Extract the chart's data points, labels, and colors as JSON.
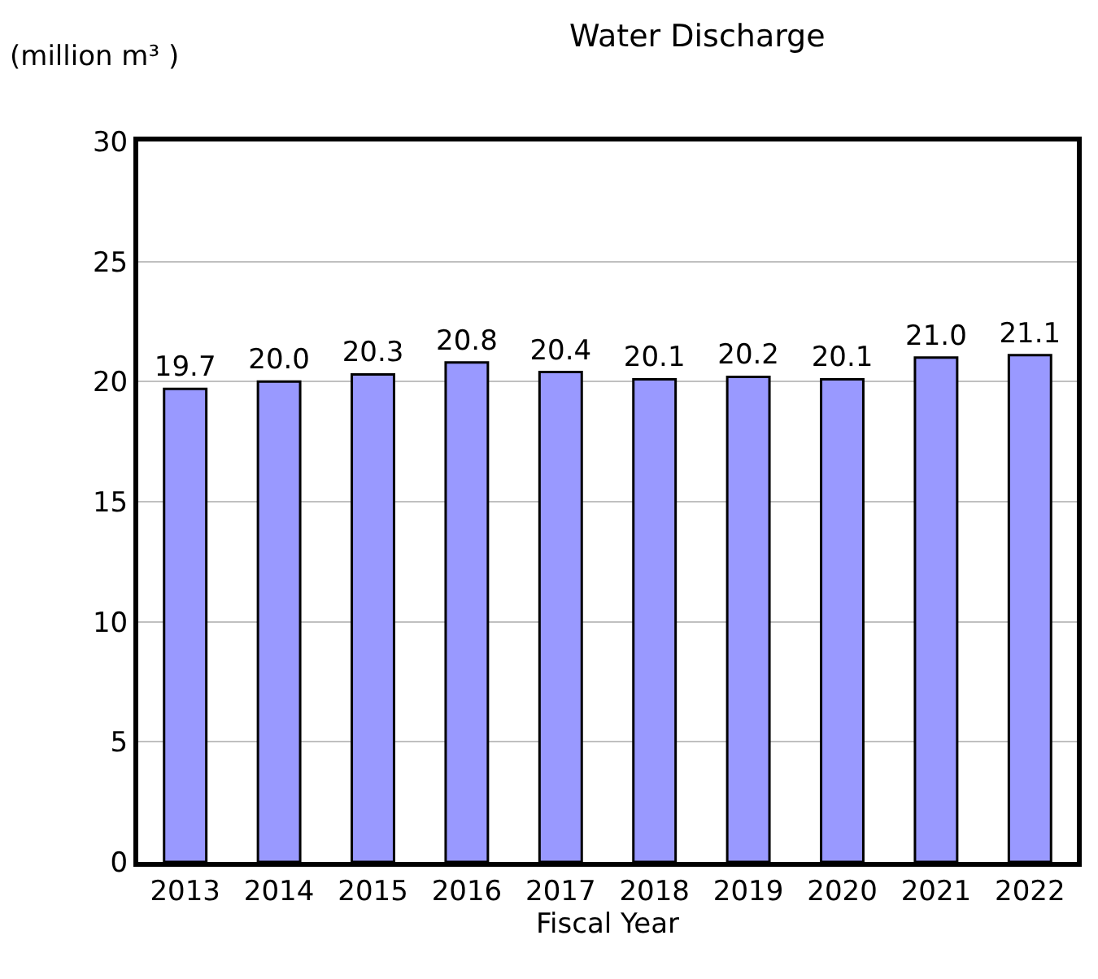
{
  "chart_data": {
    "type": "bar",
    "title": "Water Discharge",
    "ylabel": "(million m³ )",
    "xlabel": "Fiscal Year",
    "categories": [
      "2013",
      "2014",
      "2015",
      "2016",
      "2017",
      "2018",
      "2019",
      "2020",
      "2021",
      "2022"
    ],
    "values": [
      19.7,
      20.0,
      20.3,
      20.8,
      20.4,
      20.1,
      20.2,
      20.1,
      21.0,
      21.1
    ],
    "value_labels": [
      "19.7",
      "20.0",
      "20.3",
      "20.8",
      "20.4",
      "20.1",
      "20.2",
      "20.1",
      "21.0",
      "21.1"
    ],
    "color": "#9999ff",
    "ylim": [
      0,
      30
    ],
    "yticks": [
      0,
      5,
      10,
      15,
      20,
      25,
      30
    ],
    "grid": "y"
  }
}
